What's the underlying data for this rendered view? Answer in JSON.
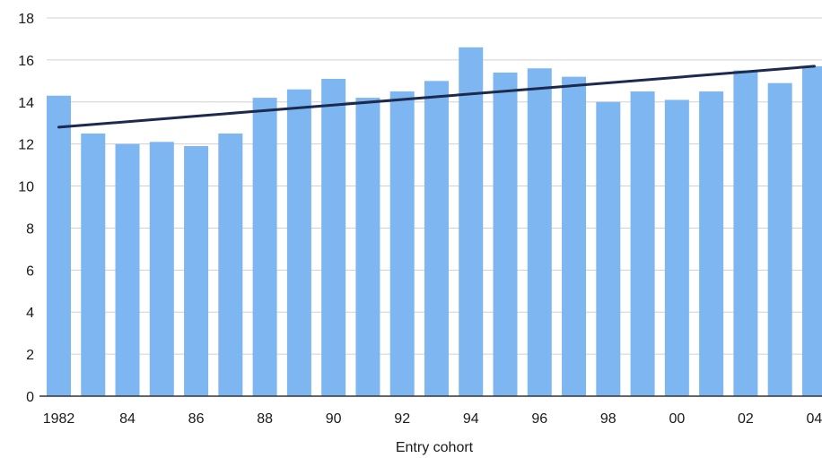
{
  "chart_data": {
    "type": "bar",
    "title": "",
    "xlabel": "Entry cohort",
    "ylabel": "",
    "ylim": [
      0,
      18
    ],
    "y_ticks": [
      "0",
      "2",
      "4",
      "6",
      "8",
      "10",
      "12",
      "14",
      "16",
      "18"
    ],
    "grid": true,
    "legend": "none",
    "categories": [
      "1982",
      "1983",
      "1984",
      "1985",
      "1986",
      "1987",
      "1988",
      "1989",
      "1990",
      "1991",
      "1992",
      "1993",
      "1994",
      "1995",
      "1996",
      "1997",
      "1998",
      "1999",
      "2000",
      "2001",
      "2002",
      "2003",
      "2004"
    ],
    "x_tick_labels": [
      "1982",
      "",
      "84",
      "",
      "86",
      "",
      "88",
      "",
      "90",
      "",
      "92",
      "",
      "94",
      "",
      "96",
      "",
      "98",
      "",
      "00",
      "",
      "02",
      "",
      "04"
    ],
    "series": [
      {
        "type": "bar",
        "values": [
          14.3,
          12.5,
          12.0,
          12.1,
          11.9,
          12.5,
          14.2,
          14.6,
          15.1,
          14.2,
          14.5,
          15.0,
          16.6,
          15.4,
          15.6,
          15.2,
          14.0,
          14.5,
          14.1,
          14.5,
          15.5,
          14.9,
          15.7
        ]
      },
      {
        "type": "line",
        "role": "trend",
        "start": 12.8,
        "end": 15.7
      }
    ],
    "colors": {
      "bar": "#7EB6F2",
      "trend": "#1B2A4E",
      "grid": "#D0D0D0",
      "axis": "#333333"
    }
  }
}
